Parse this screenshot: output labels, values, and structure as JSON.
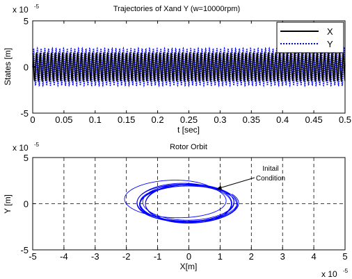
{
  "chart_data": [
    {
      "type": "line",
      "title": "Trajectories of Xand Y (w=10000rpm)",
      "xlabel": "t [sec]",
      "ylabel": "States [m]",
      "y_exponent_label": "x 10",
      "y_exponent_power": "-5",
      "xlim": [
        0,
        0.5
      ],
      "ylim": [
        -5e-05,
        5e-05
      ],
      "xticks": [
        0,
        0.05,
        0.1,
        0.15,
        0.2,
        0.25,
        0.3,
        0.35,
        0.4,
        0.45,
        0.5
      ],
      "xtick_labels": [
        "0",
        "0.05",
        "0.1",
        "0.15",
        "0.2",
        "0.25",
        "0.3",
        "0.35",
        "0.4",
        "0.45",
        "0.5"
      ],
      "yticks": [
        -5e-05,
        0,
        5e-05
      ],
      "ytick_labels": [
        "-5",
        "0",
        "5"
      ],
      "grid": false,
      "legend_position": "top-right",
      "series": [
        {
          "name": "X",
          "color": "#000000",
          "style": "solid",
          "amplitude": 1.5e-05,
          "cycles_per_sec": 167
        },
        {
          "name": "Y",
          "color": "#0000ff",
          "style": "dotted",
          "amplitude": 2e-05,
          "cycles_per_sec": 167
        }
      ]
    },
    {
      "type": "line",
      "title": "Rotor Orbit",
      "xlabel": "X[m]",
      "ylabel": "Y [m]",
      "y_exponent_label": "x 10",
      "y_exponent_power": "-5",
      "x_exponent_label": "x 10",
      "x_exponent_power": "-5",
      "xlim": [
        -5e-05,
        5e-05
      ],
      "ylim": [
        -5e-05,
        5e-05
      ],
      "xticks": [
        -5e-05,
        -4e-05,
        -3e-05,
        -2e-05,
        -1e-05,
        0,
        1e-05,
        2e-05,
        3e-05,
        4e-05,
        5e-05
      ],
      "xtick_labels": [
        "-5",
        "-4",
        "-3",
        "-2",
        "-1",
        "0",
        "1",
        "2",
        "3",
        "4",
        "5"
      ],
      "yticks": [
        -5e-05,
        0,
        5e-05
      ],
      "ytick_labels": [
        "-5",
        "0",
        "5"
      ],
      "grid": true,
      "grid_style": "dashed",
      "orbit": {
        "color": "#0000ff",
        "x_amplitude": 1.5e-05,
        "y_amplitude": 2e-05,
        "start": [
          8e-06,
          1.6e-05
        ]
      },
      "annotation": {
        "text_line1": "Initail",
        "text_line2": "Condition",
        "point": [
          8e-06,
          1.6e-05
        ]
      }
    }
  ]
}
